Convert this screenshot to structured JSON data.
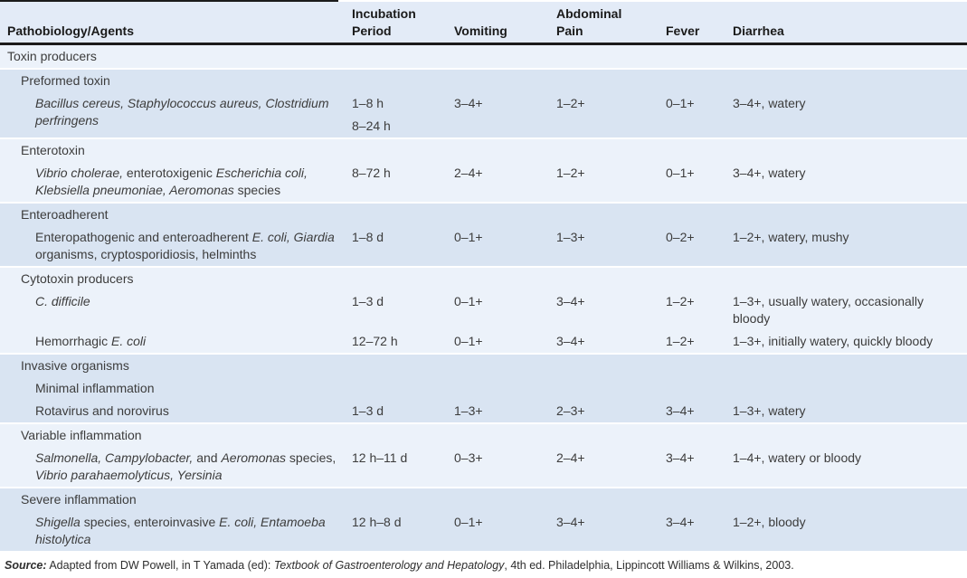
{
  "colors": {
    "band_light": "#ecf2fa",
    "band_dark": "#d9e4f2",
    "header_bg": "#e3ebf7",
    "rule": "#1b1b1b",
    "text": "#3c3c3c",
    "header_text": "#1a1a1a"
  },
  "table": {
    "columns": [
      {
        "key": "name",
        "label": "Pathobiology/Agents"
      },
      {
        "key": "incubation",
        "label": "Incubation\nPeriod"
      },
      {
        "key": "vomiting",
        "label": "Vomiting"
      },
      {
        "key": "pain",
        "label": "Abdominal\nPain"
      },
      {
        "key": "fever",
        "label": "Fever"
      },
      {
        "key": "diarrhea",
        "label": "Diarrhea"
      }
    ],
    "bands": [
      {
        "shade": "light",
        "rows": [
          {
            "indent": 1,
            "name": [
              {
                "t": "Toxin producers"
              }
            ]
          }
        ]
      },
      {
        "shade": "dark",
        "rows": [
          {
            "indent": 2,
            "name": [
              {
                "t": "Preformed toxin"
              }
            ]
          },
          {
            "indent": 3,
            "name": [
              {
                "t": "Bacillus cereus, Staphylococcus aureus, Clostridium perfringens",
                "i": true
              }
            ],
            "incubation": "1–8 h",
            "incubation2": "8–24 h",
            "vomiting": "3–4+",
            "pain": "1–2+",
            "fever": "0–1+",
            "diarrhea": "3–4+, watery"
          }
        ]
      },
      {
        "shade": "light",
        "rows": [
          {
            "indent": 2,
            "name": [
              {
                "t": "Enterotoxin"
              }
            ]
          },
          {
            "indent": 3,
            "name": [
              {
                "t": "Vibrio cholerae,",
                "i": true
              },
              {
                "t": " enterotoxigenic "
              },
              {
                "t": "Escherichia coli,",
                "i": true
              },
              {
                "t": " "
              },
              {
                "t": "Klebsiella pneumoniae, Aeromonas",
                "i": true
              },
              {
                "t": " species"
              }
            ],
            "incubation": "8–72 h",
            "vomiting": "2–4+",
            "pain": "1–2+",
            "fever": "0–1+",
            "diarrhea": "3–4+, watery"
          }
        ]
      },
      {
        "shade": "dark",
        "rows": [
          {
            "indent": 2,
            "name": [
              {
                "t": "Enteroadherent"
              }
            ]
          },
          {
            "indent": 3,
            "name": [
              {
                "t": "Enteropathogenic and enteroadherent "
              },
              {
                "t": "E. coli,",
                "i": true
              },
              {
                "t": " "
              },
              {
                "t": "Giardia",
                "i": true
              },
              {
                "t": " organisms, cryptosporidiosis, helminths"
              }
            ],
            "incubation": "1–8 d",
            "vomiting": "0–1+",
            "pain": "1–3+",
            "fever": "0–2+",
            "diarrhea": "1–2+, watery, mushy"
          }
        ]
      },
      {
        "shade": "light",
        "rows": [
          {
            "indent": 2,
            "name": [
              {
                "t": "Cytotoxin producers"
              }
            ]
          },
          {
            "indent": 3,
            "name": [
              {
                "t": "C. difficile",
                "i": true
              }
            ],
            "incubation": "1–3 d",
            "vomiting": "0–1+",
            "pain": "3–4+",
            "fever": "1–2+",
            "diarrhea": "1–3+, usually watery, occasionally bloody"
          },
          {
            "indent": 3,
            "name": [
              {
                "t": "Hemorrhagic "
              },
              {
                "t": "E. coli",
                "i": true
              }
            ],
            "incubation": "12–72 h",
            "vomiting": "0–1+",
            "pain": "3–4+",
            "fever": "1–2+",
            "diarrhea": "1–3+, initially watery, quickly bloody"
          }
        ]
      },
      {
        "shade": "dark",
        "rows": [
          {
            "indent": 2,
            "name": [
              {
                "t": "Invasive organisms"
              }
            ]
          },
          {
            "indent": 3,
            "name": [
              {
                "t": "Minimal inflammation"
              }
            ]
          },
          {
            "indent": 3,
            "name": [
              {
                "t": "Rotavirus and norovirus"
              }
            ],
            "incubation": "1–3 d",
            "vomiting": "1–3+",
            "pain": "2–3+",
            "fever": "3–4+",
            "diarrhea": "1–3+, watery"
          }
        ]
      },
      {
        "shade": "light",
        "rows": [
          {
            "indent": 2,
            "name": [
              {
                "t": "Variable inflammation"
              }
            ]
          },
          {
            "indent": 3,
            "name": [
              {
                "t": "Salmonella, Campylobacter,",
                "i": true
              },
              {
                "t": " and "
              },
              {
                "t": "Aeromonas",
                "i": true
              },
              {
                "t": " species, "
              },
              {
                "t": "Vibrio parahaemolyticus, Yersinia",
                "i": true
              }
            ],
            "incubation": "12 h–11 d",
            "vomiting": "0–3+",
            "pain": "2–4+",
            "fever": "3–4+",
            "diarrhea": "1–4+, watery or bloody"
          }
        ]
      },
      {
        "shade": "dark",
        "rows": [
          {
            "indent": 2,
            "name": [
              {
                "t": "Severe inflammation"
              }
            ]
          },
          {
            "indent": 3,
            "name": [
              {
                "t": "Shigella",
                "i": true
              },
              {
                "t": " species, enteroinvasive "
              },
              {
                "t": "E. coli, Entamoeba histolytica",
                "i": true
              }
            ],
            "incubation": "12 h–8 d",
            "vomiting": "0–1+",
            "pain": "3–4+",
            "fever": "3–4+",
            "diarrhea": "1–2+, bloody"
          }
        ]
      }
    ]
  },
  "source": {
    "segments": [
      {
        "t": "Source:",
        "b": true,
        "i": true
      },
      {
        "t": " Adapted from DW Powell, in T Yamada (ed): "
      },
      {
        "t": "Textbook of Gastroenterology and Hepatology",
        "i": true
      },
      {
        "t": ", 4th ed. Philadelphia, Lippincott Williams & Wilkins, 2003."
      }
    ]
  }
}
